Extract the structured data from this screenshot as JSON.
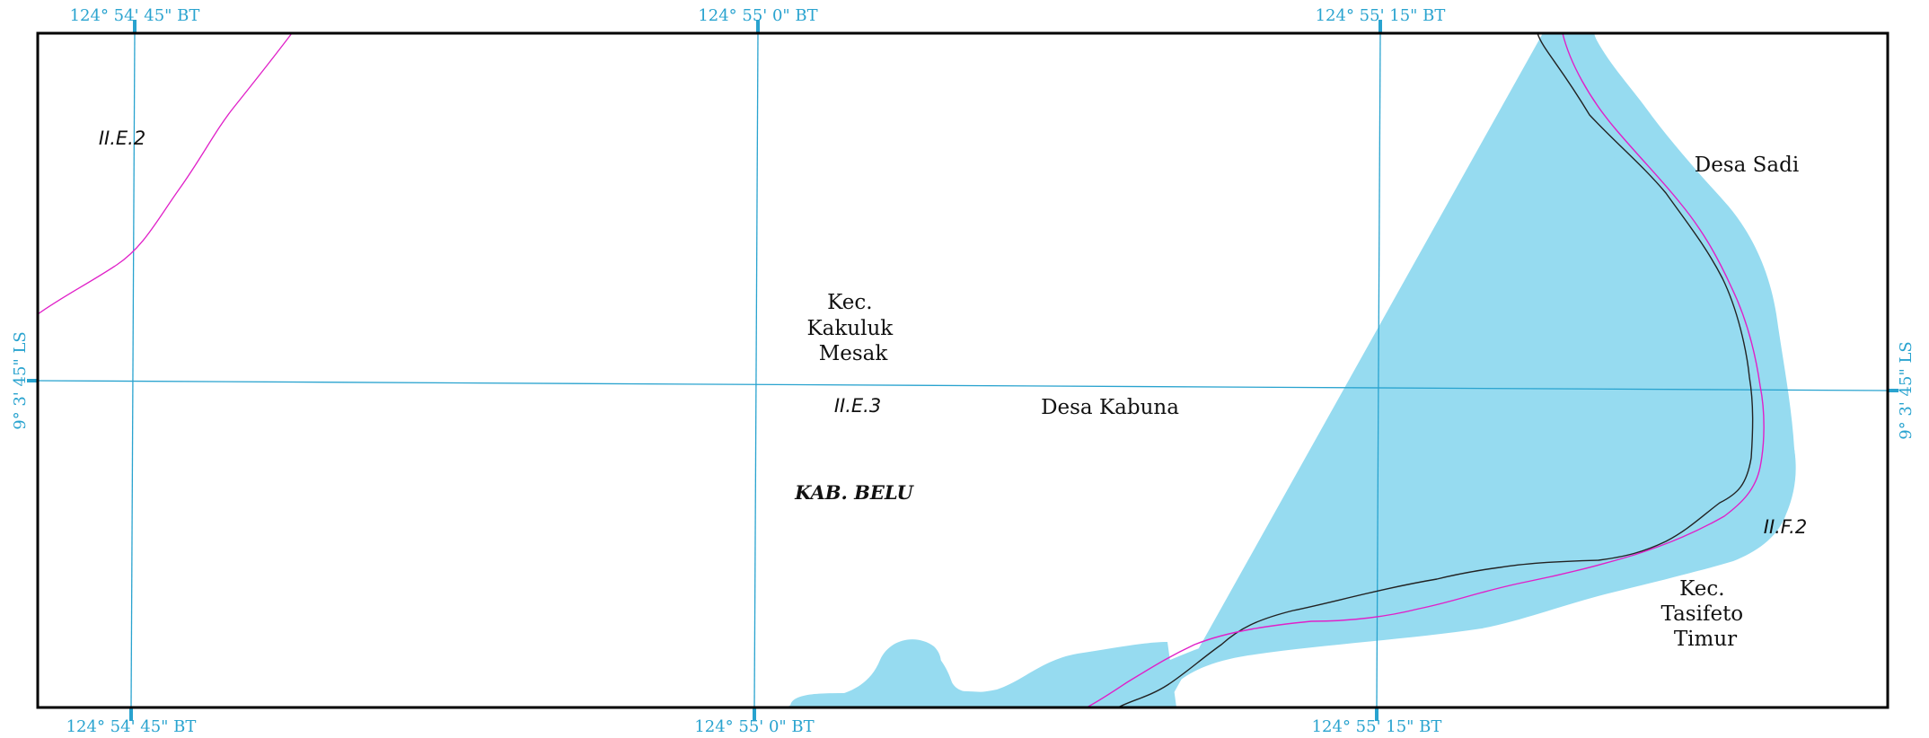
{
  "coordinates": {
    "top": {
      "lon_a": "124° 54' 45\" BT",
      "lon_b": "124° 55' 0\" BT",
      "lon_c": "124° 55' 15\" BT"
    },
    "bottom": {
      "lon_a": "124° 54' 45\" BT",
      "lon_b": "124° 55' 0\" BT",
      "lon_c": "124° 55' 15\" BT"
    },
    "left_lat": "9° 3' 45\" LS",
    "right_lat": "9° 3' 45\" LS"
  },
  "places": {
    "kec_kakuluk": [
      "Kec.",
      "Kakuluk",
      "Mesak"
    ],
    "desa_kabuna": "Desa Kabuna",
    "desa_sadi": "Desa Sadi",
    "kec_tasifeto": [
      "Kec.",
      "Tasifeto",
      "Timur"
    ],
    "kab_belu": "KAB. BELU"
  },
  "codes": {
    "ii_e_2": "II.E.2",
    "ii_e_3": "II.E.3",
    "ii_f_2": "II.F.2"
  },
  "colors": {
    "grid": "#29a3cf",
    "river": "#96dbf0",
    "boundary": "#e020c8",
    "centerline": "#222222",
    "frame": "#000000"
  }
}
